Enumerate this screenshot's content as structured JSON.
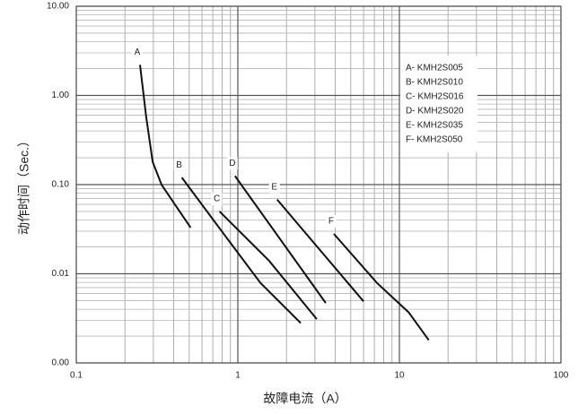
{
  "chart_data": {
    "type": "line",
    "xlabel": "故障电流（A）",
    "ylabel": "动作时间（Sec.）",
    "xscale": "log",
    "yscale": "log",
    "grid": true,
    "legend": "upper right",
    "color": "#111111",
    "xlim": [
      0.1,
      100
    ],
    "ylim": [
      0.001,
      10
    ],
    "xticks": [
      0.1,
      1,
      10,
      100
    ],
    "yticks": [
      {
        "value": 0.001,
        "label": "0.00"
      },
      {
        "value": 0.01,
        "label": "0.01"
      },
      {
        "value": 0.1,
        "label": "0.10"
      },
      {
        "value": 1,
        "label": "1.00"
      },
      {
        "value": 10,
        "label": "10.00"
      }
    ],
    "xminor_ticks": [
      0.2,
      0.3,
      0.4,
      0.5,
      0.6,
      0.7,
      0.8,
      0.9,
      2,
      3,
      4,
      5,
      6,
      7,
      8,
      9,
      20,
      30,
      40,
      50,
      60,
      70,
      80,
      90
    ],
    "yminor_ticks": [
      0.002,
      0.003,
      0.004,
      0.005,
      0.006,
      0.007,
      0.008,
      0.009,
      0.02,
      0.03,
      0.04,
      0.05,
      0.06,
      0.07,
      0.08,
      0.09,
      0.2,
      0.3,
      0.4,
      0.5,
      0.6,
      0.7,
      0.8,
      0.9,
      2,
      3,
      4,
      5,
      6,
      7,
      8,
      9
    ],
    "series": [
      {
        "name": "A",
        "label": "A- KMH2S005",
        "x": [
          0.248,
          0.271,
          0.297,
          0.337,
          0.41,
          0.51
        ],
        "values": [
          2.2,
          0.57,
          0.18,
          0.1,
          0.059,
          0.033
        ]
      },
      {
        "name": "B",
        "label": "B- KMH2S010",
        "x": [
          0.45,
          0.83,
          1.38,
          2.45
        ],
        "values": [
          0.12,
          0.027,
          0.0079,
          0.0028
        ]
      },
      {
        "name": "C",
        "label": "C- KMH2S016",
        "x": [
          0.77,
          1.56,
          3.08
        ],
        "values": [
          0.05,
          0.014,
          0.0031
        ]
      },
      {
        "name": "D",
        "label": "D- KMH2S020",
        "x": [
          0.96,
          3.5
        ],
        "values": [
          0.125,
          0.0047
        ]
      },
      {
        "name": "E",
        "label": "E- KMH2S035",
        "x": [
          1.75,
          6.0
        ],
        "values": [
          0.068,
          0.0049
        ]
      },
      {
        "name": "F",
        "label": "F- KMH2S050",
        "x": [
          3.93,
          7.26,
          11.4,
          15.2
        ],
        "values": [
          0.028,
          0.0079,
          0.0037,
          0.0018
        ]
      }
    ]
  }
}
